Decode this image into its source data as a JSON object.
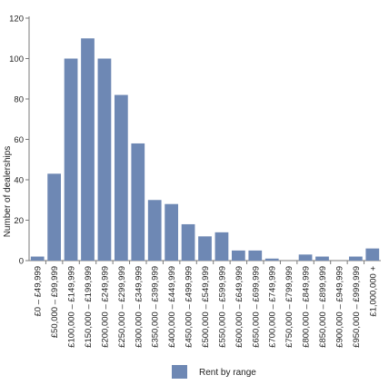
{
  "chart_data": {
    "type": "bar",
    "ylabel": "Number of dealerships",
    "ylim": [
      0,
      120
    ],
    "yticks": [
      0,
      20,
      40,
      60,
      80,
      100,
      120
    ],
    "categories": [
      "£0 – £49,999",
      "£50,000 – £99,999",
      "£100,000 – £149,999",
      "£150,000 – £199,999",
      "£200,000 – £249,999",
      "£250,000 – £299,999",
      "£300,000 – £349,999",
      "£350,000 – £399,999",
      "£400,000 – £449,999",
      "£450,000 – £499,999",
      "£500,000 – £549,999",
      "£550,000 – £599,999",
      "£600,000 – £649,999",
      "£650,000 – £699,999",
      "£700,000 – £749,999",
      "£750,000 – £799,999",
      "£800,000 – £849,999",
      "£850,000 – £899,999",
      "£900,000 – £949,999",
      "£950,000 – £999,999",
      "£1,000,000 +"
    ],
    "series": [
      {
        "name": "Rent by range",
        "color": "#6e88b4",
        "values": [
          2,
          43,
          100,
          110,
          100,
          82,
          58,
          30,
          28,
          18,
          12,
          14,
          5,
          5,
          1,
          0,
          3,
          2,
          0,
          2,
          6
        ]
      }
    ],
    "grid": false,
    "legend_position": "bottom-center"
  }
}
